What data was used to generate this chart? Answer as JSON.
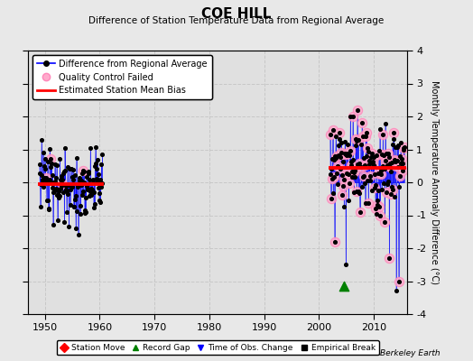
{
  "title": "COE HILL",
  "subtitle": "Difference of Station Temperature Data from Regional Average",
  "ylabel": "Monthly Temperature Anomaly Difference (°C)",
  "xlabel_years": [
    1950,
    1960,
    1970,
    1980,
    1990,
    2000,
    2010
  ],
  "ylim": [
    -4,
    4
  ],
  "xlim": [
    1947,
    2016
  ],
  "background_color": "#e8e8e8",
  "plot_bg_color": "#e0e0e0",
  "grid_color": "#c8c8c8",
  "bias_color": "#ff0000",
  "line_color": "#0000ff",
  "dot_color": "#000000",
  "qc_color_face": "#ffaacc",
  "qc_color_edge": "#ff88bb",
  "record_gap_x": 2004.5,
  "record_gap_y": -3.15,
  "watermark": "Berkeley Earth",
  "seg1_x_start": 1949.0,
  "seg1_x_end": 1960.5,
  "seg1_bias": -0.05,
  "seg2_x_start": 2002.0,
  "seg2_x_end": 2015.5,
  "seg2_bias": 0.45
}
